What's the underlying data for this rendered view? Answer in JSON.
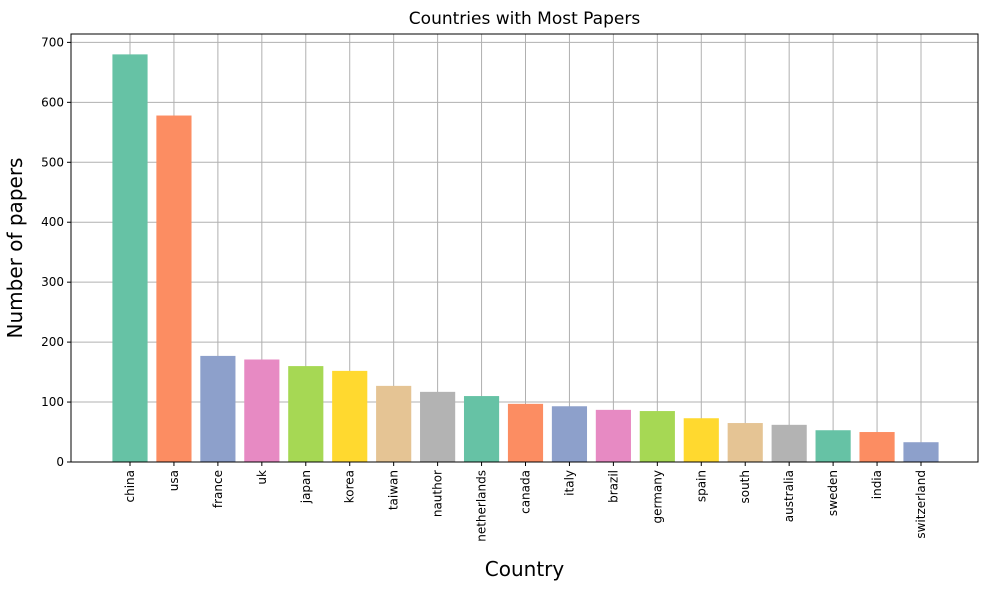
{
  "chart_data": {
    "type": "bar",
    "title": "Countries with Most Papers",
    "xlabel": "Country",
    "ylabel": "Number of papers",
    "categories": [
      "china",
      "usa",
      "france",
      "uk",
      "japan",
      "korea",
      "taiwan",
      "nauthor",
      "netherlands",
      "canada",
      "italy",
      "brazil",
      "germany",
      "spain",
      "south",
      "australia",
      "sweden",
      "india",
      "switzerland"
    ],
    "values": [
      680,
      578,
      177,
      171,
      160,
      152,
      127,
      117,
      110,
      97,
      93,
      87,
      85,
      73,
      65,
      62,
      53,
      50,
      33
    ],
    "colors": [
      "#66c2a5",
      "#fc8d62",
      "#8da0cb",
      "#e78ac3",
      "#a6d854",
      "#ffd92f",
      "#e5c494",
      "#b3b3b3",
      "#66c2a5",
      "#fc8d62",
      "#8da0cb",
      "#e78ac3",
      "#a6d854",
      "#ffd92f",
      "#e5c494",
      "#b3b3b3",
      "#66c2a5",
      "#fc8d62",
      "#8da0cb"
    ],
    "ylim": [
      0,
      714
    ],
    "yticks": [
      0,
      100,
      200,
      300,
      400,
      500,
      600,
      700
    ],
    "grid": true,
    "legend": "none"
  }
}
